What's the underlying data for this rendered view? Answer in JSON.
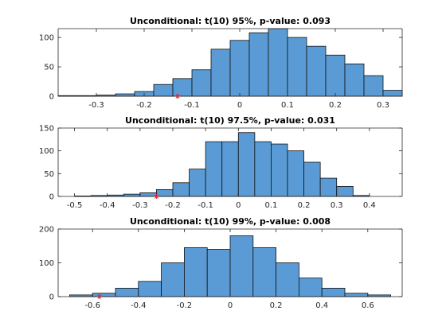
{
  "chart_data": [
    {
      "type": "bar",
      "title": "Unconditional: t(10) 95%, p-value: 0.093",
      "bin_edges": [
        -0.38,
        -0.34,
        -0.3,
        -0.26,
        -0.22,
        -0.18,
        -0.14,
        -0.1,
        -0.06,
        -0.02,
        0.02,
        0.06,
        0.1,
        0.14,
        0.18,
        0.22,
        0.26,
        0.3,
        0.34
      ],
      "values": [
        1,
        1,
        2,
        4,
        8,
        20,
        30,
        45,
        80,
        95,
        108,
        115,
        100,
        85,
        70,
        55,
        35,
        10
      ],
      "xlim": [
        -0.38,
        0.34
      ],
      "ylim": [
        0,
        115
      ],
      "xticks": [
        -0.3,
        -0.2,
        -0.1,
        0,
        0.1,
        0.2,
        0.3
      ],
      "xtick_labels": [
        "-0.3",
        "-0.2",
        "-0.1",
        "0",
        "0.1",
        "0.2",
        "0.3"
      ],
      "yticks": [
        0,
        50,
        100
      ],
      "ytick_labels": [
        "0",
        "50",
        "100"
      ],
      "marker_x": -0.13
    },
    {
      "type": "bar",
      "title": "Unconditional: t(10) 97.5%, p-value: 0.031",
      "bin_edges": [
        -0.5,
        -0.45,
        -0.4,
        -0.35,
        -0.3,
        -0.25,
        -0.2,
        -0.15,
        -0.1,
        -0.05,
        0.0,
        0.05,
        0.1,
        0.15,
        0.2,
        0.25,
        0.3,
        0.35,
        0.4
      ],
      "values": [
        1,
        2,
        3,
        5,
        8,
        15,
        30,
        60,
        120,
        120,
        140,
        120,
        115,
        100,
        75,
        40,
        22,
        2
      ],
      "xlim": [
        -0.55,
        0.5
      ],
      "ylim": [
        0,
        150
      ],
      "xticks": [
        -0.5,
        -0.4,
        -0.3,
        -0.2,
        -0.1,
        0,
        0.1,
        0.2,
        0.3,
        0.4
      ],
      "xtick_labels": [
        "-0.5",
        "-0.4",
        "-0.3",
        "-0.2",
        "-0.1",
        "0",
        "0.1",
        "0.2",
        "0.3",
        "0.4"
      ],
      "yticks": [
        0,
        50,
        100,
        150
      ],
      "ytick_labels": [
        "0",
        "50",
        "100",
        "150"
      ],
      "marker_x": -0.25
    },
    {
      "type": "bar",
      "title": "Unconditional: t(10) 99%, p-value: 0.008",
      "bin_edges": [
        -0.7,
        -0.6,
        -0.5,
        -0.4,
        -0.3,
        -0.2,
        -0.1,
        0.0,
        0.1,
        0.2,
        0.3,
        0.4,
        0.5,
        0.6,
        0.7
      ],
      "values": [
        5,
        10,
        25,
        45,
        100,
        145,
        140,
        180,
        145,
        100,
        55,
        25,
        10,
        5
      ],
      "xlim": [
        -0.75,
        0.75
      ],
      "ylim": [
        0,
        200
      ],
      "xticks": [
        -0.6,
        -0.4,
        -0.2,
        0,
        0.2,
        0.4,
        0.6
      ],
      "xtick_labels": [
        "-0.6",
        "-0.4",
        "-0.2",
        "0",
        "0.2",
        "0.4",
        "0.6"
      ],
      "yticks": [
        0,
        100,
        200
      ],
      "ytick_labels": [
        "0",
        "100",
        "200"
      ],
      "marker_x": -0.57
    }
  ]
}
